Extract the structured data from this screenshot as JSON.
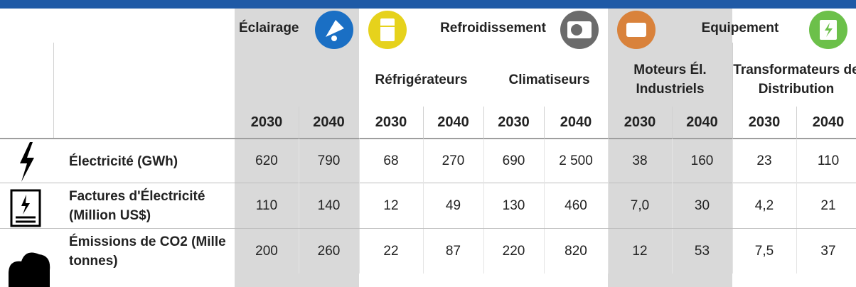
{
  "header": {
    "groups": [
      {
        "title": "Éclairage"
      },
      {
        "title": "Refroidissement"
      },
      {
        "title": "Equipement"
      }
    ],
    "subheaders": [
      "Réfrigérateurs",
      "Climatiseurs",
      "Moteurs Él. Industriels",
      "Transformateurs de Distribution"
    ],
    "years": [
      "2030",
      "2040",
      "2030",
      "2040",
      "2030",
      "2040",
      "2030",
      "2040",
      "2030",
      "2040"
    ]
  },
  "table": {
    "rows": [
      {
        "label": "Électricité (GWh)",
        "values": [
          "620",
          "790",
          "68",
          "270",
          "690",
          "2 500",
          "38",
          "160",
          "23",
          "110"
        ]
      },
      {
        "label": "Factures d'Électricité (Million US$)",
        "values": [
          "110",
          "140",
          "12",
          "49",
          "130",
          "460",
          "7,0",
          "30",
          "4,2",
          "21"
        ]
      },
      {
        "label": "Émissions de CO2 (Mille tonnes)",
        "values": [
          "200",
          "260",
          "22",
          "87",
          "220",
          "820",
          "12",
          "53",
          "7,5",
          "37"
        ]
      }
    ]
  }
}
